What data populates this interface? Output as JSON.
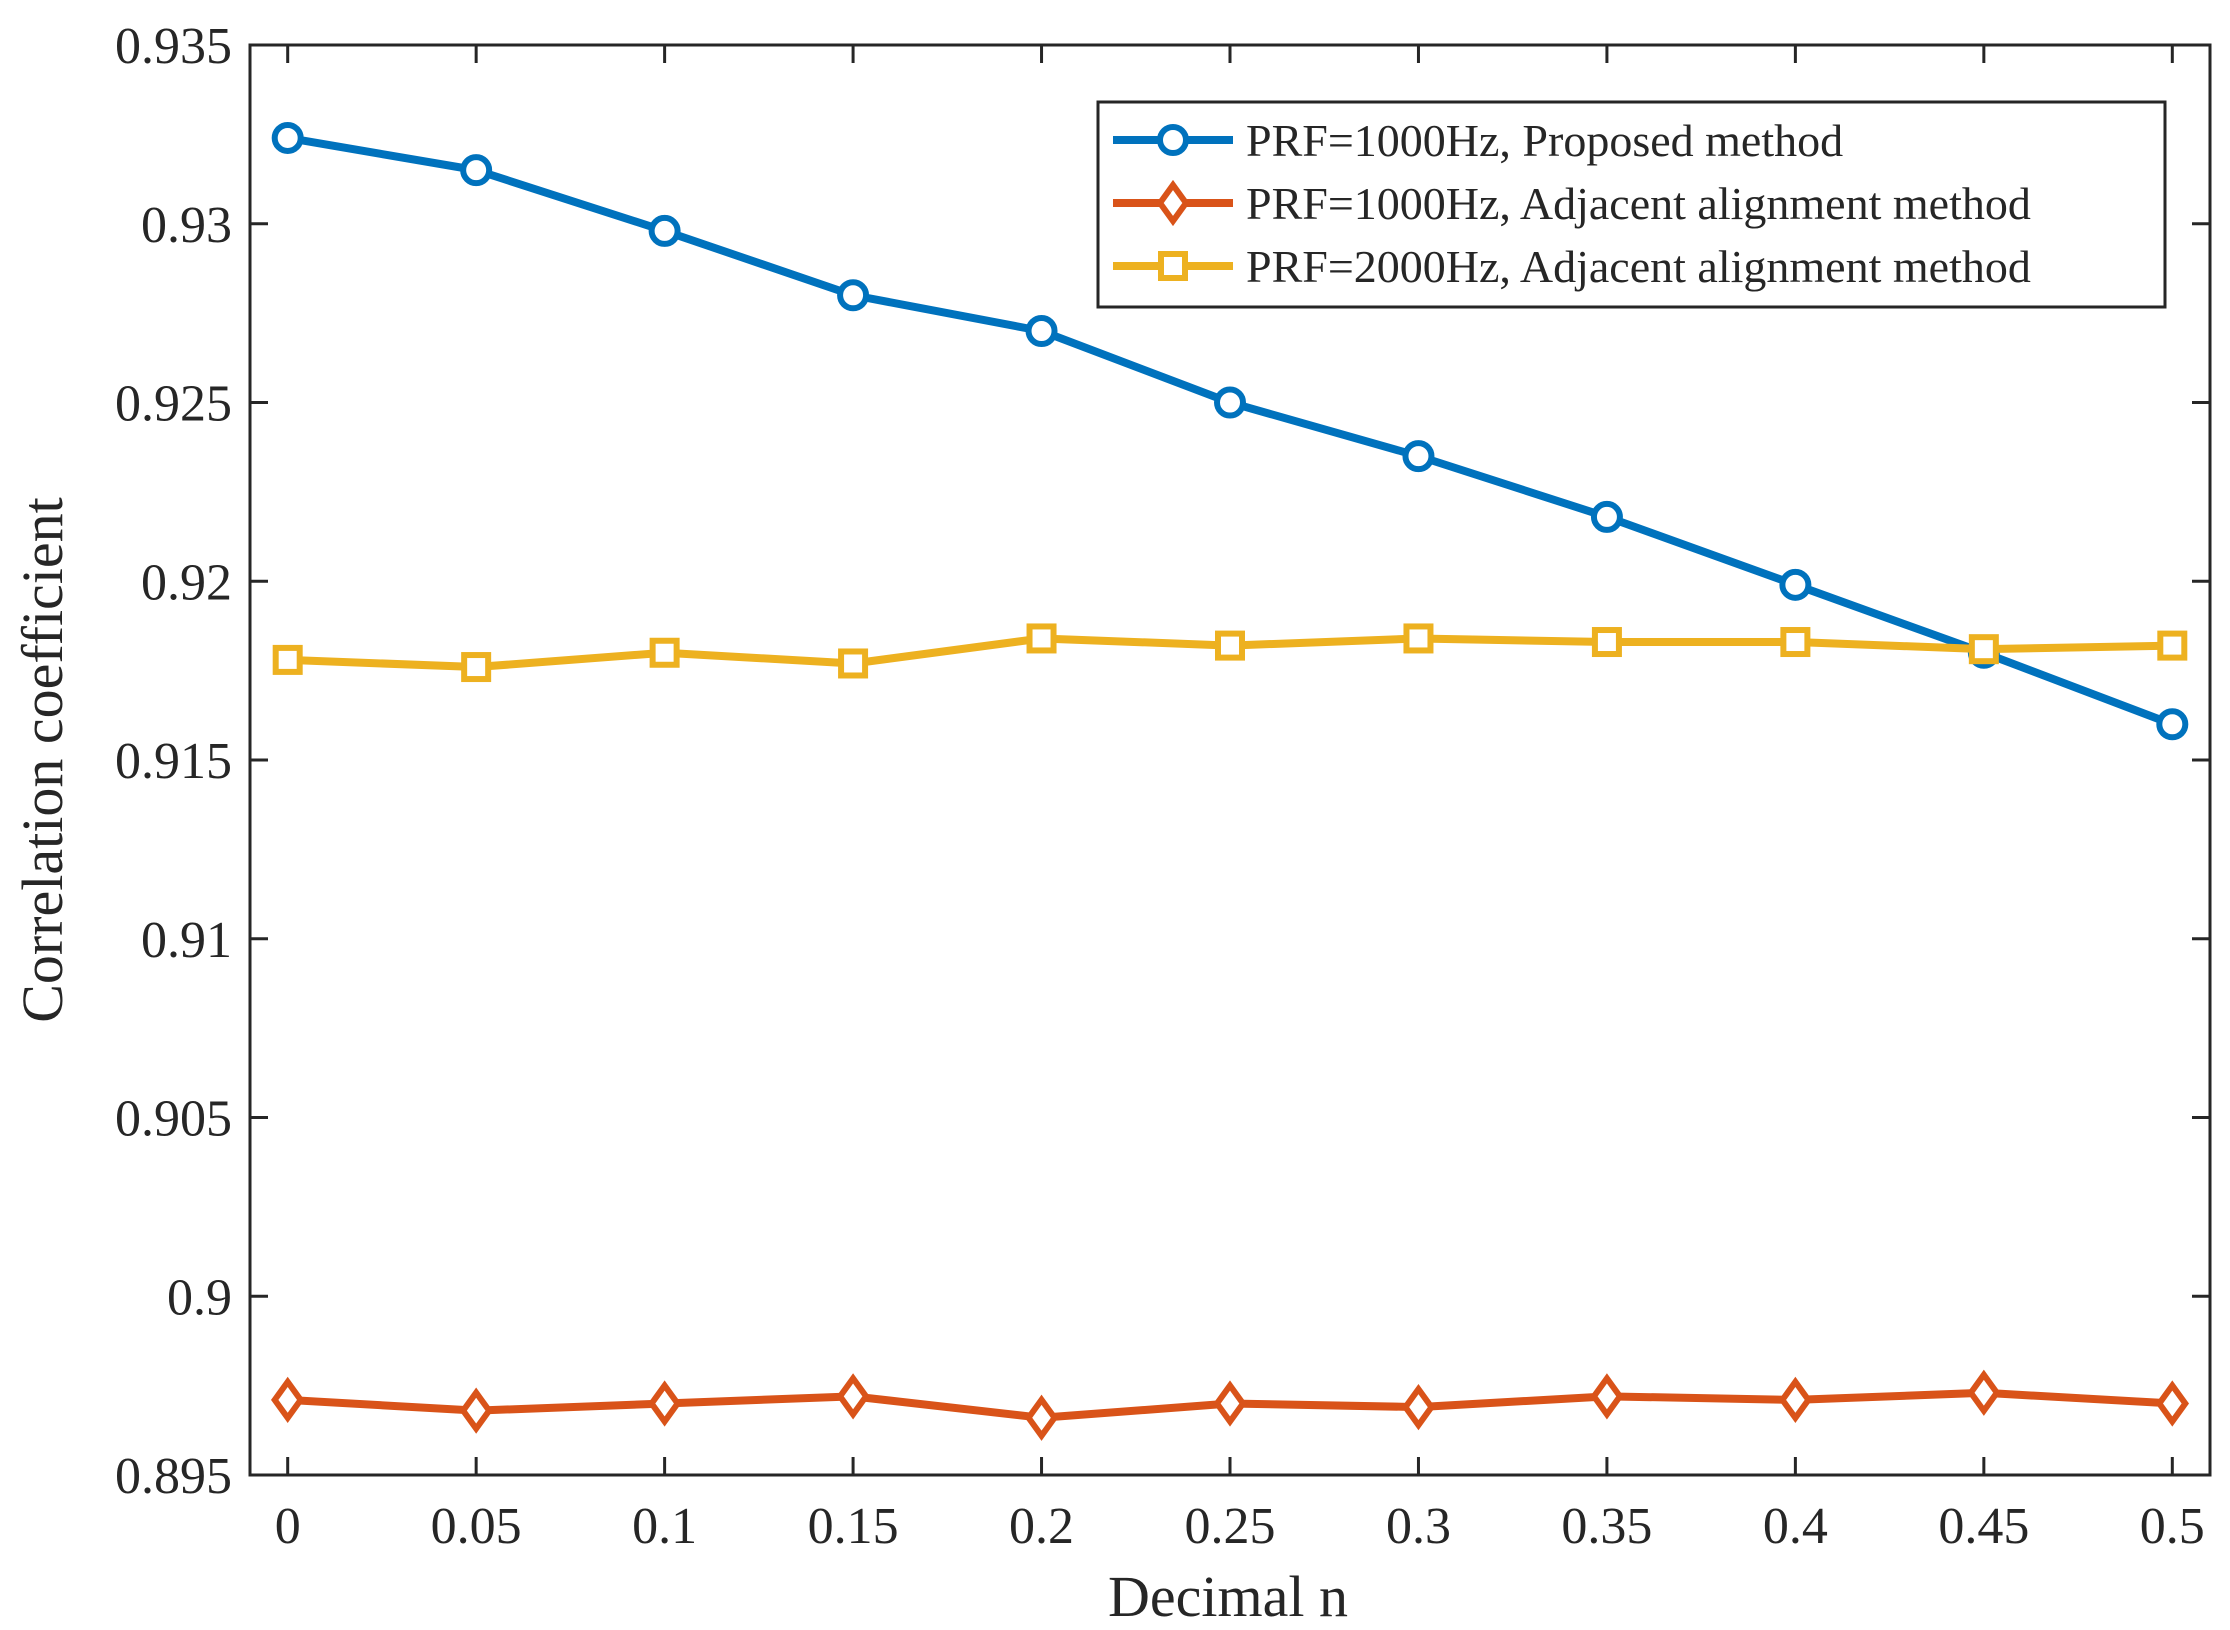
{
  "chart_data": {
    "type": "line",
    "title": "",
    "xlabel": "Decimal n",
    "ylabel": "Correlation coefficient",
    "xlim": [
      -0.01,
      0.51
    ],
    "ylim": [
      0.895,
      0.935
    ],
    "x_ticks": [
      0,
      0.05,
      0.1,
      0.15,
      0.2,
      0.25,
      0.3,
      0.35,
      0.4,
      0.45,
      0.5
    ],
    "x_tick_labels": [
      "0",
      "0.05",
      "0.1",
      "0.15",
      "0.2",
      "0.25",
      "0.3",
      "0.35",
      "0.4",
      "0.45",
      "0.5"
    ],
    "y_ticks": [
      0.895,
      0.9,
      0.905,
      0.91,
      0.915,
      0.92,
      0.925,
      0.93,
      0.935
    ],
    "y_tick_labels": [
      "0.895",
      "0.9",
      "0.905",
      "0.91",
      "0.915",
      "0.92",
      "0.925",
      "0.93",
      "0.935"
    ],
    "grid": false,
    "legend_position": "top-right",
    "x": [
      0,
      0.05,
      0.1,
      0.15,
      0.2,
      0.25,
      0.3,
      0.35,
      0.4,
      0.45,
      0.5
    ],
    "series": [
      {
        "name": "PRF=1000Hz, Proposed method",
        "color": "#0072BD",
        "marker": "circle",
        "values": [
          0.9324,
          0.9315,
          0.9298,
          0.928,
          0.927,
          0.925,
          0.9235,
          0.9218,
          0.9199,
          0.918,
          0.916
        ]
      },
      {
        "name": "PRF=1000Hz, Adjacent alignment method",
        "color": "#D95319",
        "marker": "diamond",
        "values": [
          0.8971,
          0.8968,
          0.897,
          0.8972,
          0.8966,
          0.897,
          0.8969,
          0.8972,
          0.8971,
          0.8973,
          0.897
        ]
      },
      {
        "name": "PRF=2000Hz, Adjacent alignment method",
        "color": "#EDB120",
        "marker": "square",
        "values": [
          0.9178,
          0.9176,
          0.918,
          0.9177,
          0.9184,
          0.9182,
          0.9184,
          0.9183,
          0.9183,
          0.9181,
          0.9182
        ]
      }
    ]
  }
}
